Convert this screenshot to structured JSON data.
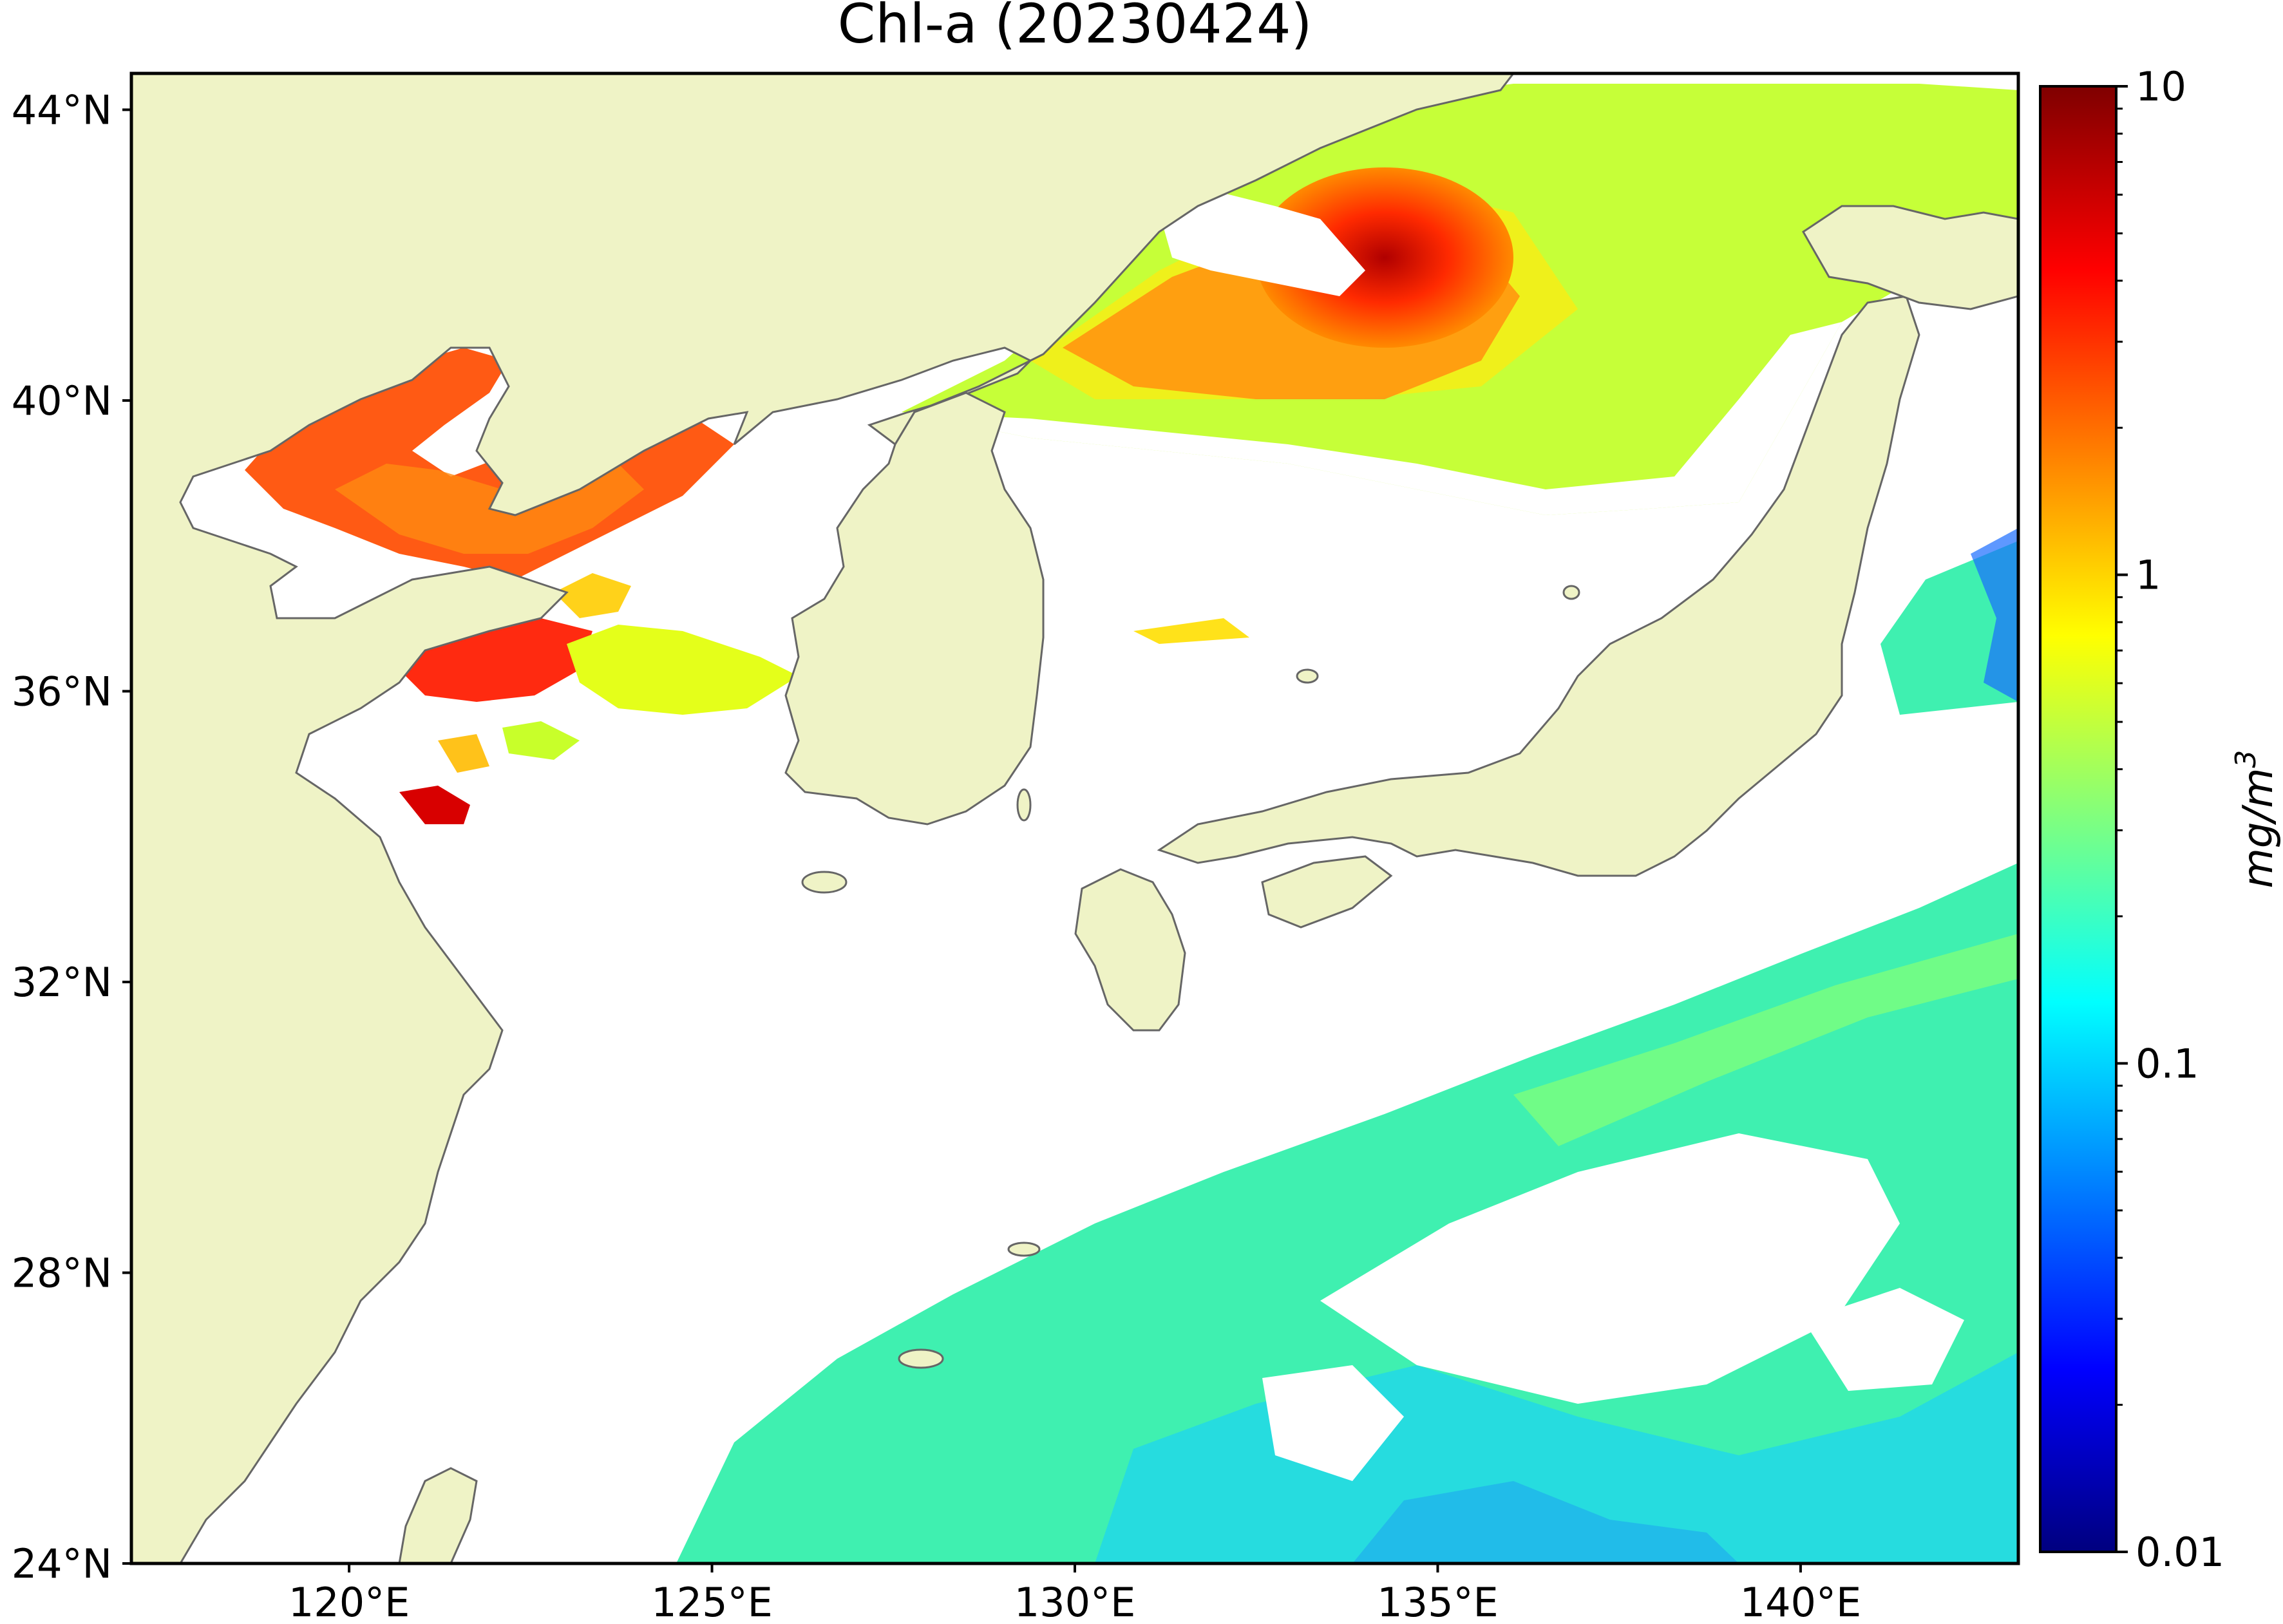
{
  "title": "Chl-a (20230424)",
  "map": {
    "lon_range": [
      117,
      143
    ],
    "lat_range": [
      24,
      44.5
    ],
    "lat_ticks": [
      {
        "value": 24,
        "label": "24°N"
      },
      {
        "value": 28,
        "label": "28°N"
      },
      {
        "value": 32,
        "label": "32°N"
      },
      {
        "value": 36,
        "label": "36°N"
      },
      {
        "value": 40,
        "label": "40°N"
      },
      {
        "value": 44,
        "label": "44°N"
      }
    ],
    "lon_ticks": [
      {
        "value": 120,
        "label": "120°E"
      },
      {
        "value": 125,
        "label": "125°E"
      },
      {
        "value": 130,
        "label": "130°E"
      },
      {
        "value": 135,
        "label": "135°E"
      },
      {
        "value": 140,
        "label": "140°E"
      }
    ],
    "colors": {
      "land": "#eff3c6",
      "coastline": "#666666",
      "ocean_no_data": "#ffffff",
      "frame": "#000000"
    }
  },
  "colorbar": {
    "label": "mg/m",
    "label_superscript": "3",
    "scale": "log",
    "range": [
      0.01,
      10
    ],
    "ticks": [
      {
        "value": 10,
        "label": "10"
      },
      {
        "value": 1,
        "label": "1"
      },
      {
        "value": 0.1,
        "label": "0.1"
      },
      {
        "value": 0.01,
        "label": "0.01"
      }
    ],
    "colormap": "jet",
    "colormap_stops": [
      "#00007f",
      "#0000ff",
      "#007fff",
      "#00ffff",
      "#7fff7f",
      "#ffff00",
      "#ff7f00",
      "#ff0000",
      "#7f0000"
    ]
  }
}
